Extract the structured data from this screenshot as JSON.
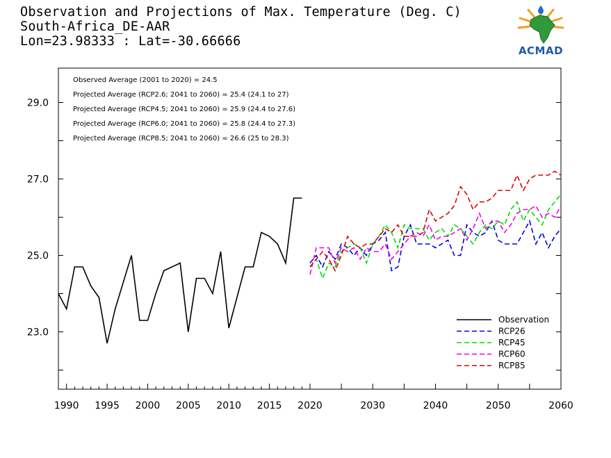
{
  "header": {
    "title_line1": "Observation and Projections of Max. Temperature (Deg. C)",
    "title_line2": "South-Africa_DE-AAR",
    "title_line3": "Lon=23.98333 : Lat=-30.66666"
  },
  "logo": {
    "text": "ACMAD",
    "icon": "africa-map-logo"
  },
  "colors": {
    "observation": "#000000",
    "rcp26": "#0000dd",
    "rcp45": "#00dd00",
    "rcp60": "#ee00ee",
    "rcp85": "#dd0000"
  },
  "chart_data": {
    "type": "line",
    "title": "Observation and Projections of Max. Temperature (Deg. C)",
    "xlabel": "",
    "ylabel": "",
    "xlim": [
      1989,
      2060
    ],
    "ylim": [
      21.5,
      29.9
    ],
    "x_ticks": [
      "1990",
      "1995",
      "2000",
      "2005",
      "2010",
      "2015",
      "2020",
      "2030",
      "2040",
      "2050",
      "2060"
    ],
    "y_ticks": [
      "23.0",
      "25.0",
      "27.0",
      "29.0"
    ],
    "grid": false,
    "legend_position": "bottom-right",
    "annotations": [
      "Observed Average (2001 to 2020) = 24.5",
      "Projected Average (RCP2.6; 2041 to 2060) = 25.4 (24.1 to 27)",
      "Projected Average (RCP4.5; 2041 to 2060) = 25.9 (24.4 to 27.6)",
      "Projected Average (RCP6.0; 2041 to 2060) = 25.8 (24.4 to 27.3)",
      "Projected Average (RCP8.5; 2041 to 2060) = 26.6 (25 to 28.3)"
    ],
    "series": [
      {
        "name": "Observation",
        "dashed": false,
        "x": [
          1989,
          1990,
          1991,
          1992,
          1993,
          1994,
          1995,
          1996,
          1997,
          1998,
          1999,
          2000,
          2001,
          2002,
          2003,
          2004,
          2005,
          2006,
          2007,
          2008,
          2009,
          2010,
          2011,
          2012,
          2013,
          2014,
          2015,
          2016,
          2017,
          2018,
          2019
        ],
        "values": [
          24.0,
          23.6,
          24.7,
          24.7,
          24.2,
          23.9,
          22.7,
          23.6,
          24.3,
          25.0,
          23.3,
          23.3,
          24.0,
          24.6,
          24.7,
          24.8,
          23.0,
          24.4,
          24.4,
          24.0,
          25.1,
          23.1,
          23.9,
          24.7,
          24.7,
          25.6,
          25.5,
          25.3,
          24.8,
          26.5,
          26.5
        ]
      },
      {
        "name": "RCP26",
        "dashed": true,
        "x": [
          2020,
          2021,
          2022,
          2023,
          2024,
          2025,
          2026,
          2027,
          2028,
          2029,
          2030,
          2031,
          2032,
          2033,
          2034,
          2035,
          2036,
          2037,
          2038,
          2039,
          2040,
          2041,
          2042,
          2043,
          2044,
          2045,
          2046,
          2047,
          2048,
          2049,
          2050,
          2051,
          2052,
          2053,
          2054,
          2055,
          2056,
          2057,
          2058,
          2059,
          2060
        ],
        "values": [
          24.8,
          25.0,
          24.7,
          25.1,
          24.9,
          25.3,
          25.2,
          25.0,
          25.2,
          25.0,
          25.3,
          25.4,
          25.6,
          24.6,
          24.7,
          25.5,
          25.8,
          25.3,
          25.3,
          25.3,
          25.2,
          25.3,
          25.4,
          25.0,
          25.0,
          25.8,
          25.6,
          25.5,
          25.6,
          25.9,
          25.4,
          25.3,
          25.3,
          25.3,
          25.6,
          25.9,
          25.3,
          25.6,
          25.2,
          25.5,
          25.7
        ]
      },
      {
        "name": "RCP45",
        "dashed": true,
        "x": [
          2020,
          2021,
          2022,
          2023,
          2024,
          2025,
          2026,
          2027,
          2028,
          2029,
          2030,
          2031,
          2032,
          2033,
          2034,
          2035,
          2036,
          2037,
          2038,
          2039,
          2040,
          2041,
          2042,
          2043,
          2044,
          2045,
          2046,
          2047,
          2048,
          2049,
          2050,
          2051,
          2052,
          2053,
          2054,
          2055,
          2056,
          2057,
          2058,
          2059,
          2060
        ],
        "values": [
          24.7,
          24.9,
          24.4,
          24.8,
          24.7,
          25.1,
          25.2,
          25.3,
          25.2,
          24.8,
          25.3,
          25.5,
          25.8,
          25.6,
          25.2,
          25.8,
          25.7,
          25.7,
          25.7,
          25.4,
          25.6,
          25.7,
          25.5,
          25.8,
          25.7,
          25.5,
          25.3,
          25.6,
          25.8,
          25.7,
          25.9,
          25.8,
          26.2,
          26.4,
          25.9,
          26.2,
          26.0,
          25.8,
          26.2,
          26.4,
          26.6
        ]
      },
      {
        "name": "RCP60",
        "dashed": true,
        "x": [
          2020,
          2021,
          2022,
          2023,
          2024,
          2025,
          2026,
          2027,
          2028,
          2029,
          2030,
          2031,
          2032,
          2033,
          2034,
          2035,
          2036,
          2037,
          2038,
          2039,
          2040,
          2041,
          2042,
          2043,
          2044,
          2045,
          2046,
          2047,
          2048,
          2049,
          2050,
          2051,
          2052,
          2053,
          2054,
          2055,
          2056,
          2057,
          2058,
          2059,
          2060
        ],
        "values": [
          24.5,
          25.2,
          25.2,
          25.2,
          24.8,
          25.2,
          25.1,
          25.2,
          24.9,
          25.2,
          25.1,
          25.1,
          25.3,
          24.9,
          25.1,
          25.3,
          25.5,
          25.6,
          25.5,
          25.8,
          25.4,
          25.5,
          25.5,
          25.6,
          25.7,
          25.4,
          25.7,
          26.1,
          25.7,
          25.9,
          25.9,
          25.6,
          25.8,
          26.1,
          26.2,
          26.2,
          26.3,
          26.0,
          26.1,
          26.0,
          26.3
        ]
      },
      {
        "name": "RCP85",
        "dashed": true,
        "x": [
          2020,
          2021,
          2022,
          2023,
          2024,
          2025,
          2026,
          2027,
          2028,
          2029,
          2030,
          2031,
          2032,
          2033,
          2034,
          2035,
          2036,
          2037,
          2038,
          2039,
          2040,
          2041,
          2042,
          2043,
          2044,
          2045,
          2046,
          2047,
          2048,
          2049,
          2050,
          2051,
          2052,
          2053,
          2054,
          2055,
          2056,
          2057,
          2058,
          2059,
          2060
        ],
        "values": [
          24.7,
          24.9,
          25.1,
          24.9,
          24.6,
          25.0,
          25.5,
          25.3,
          25.2,
          25.3,
          25.3,
          25.5,
          25.7,
          25.6,
          25.8,
          25.5,
          25.5,
          25.5,
          25.6,
          26.2,
          25.9,
          26.0,
          26.1,
          26.3,
          26.8,
          26.6,
          26.2,
          26.4,
          26.4,
          26.5,
          26.7,
          26.7,
          26.7,
          27.1,
          26.7,
          27.0,
          27.1,
          27.1,
          27.1,
          27.2,
          27.1
        ]
      }
    ]
  }
}
